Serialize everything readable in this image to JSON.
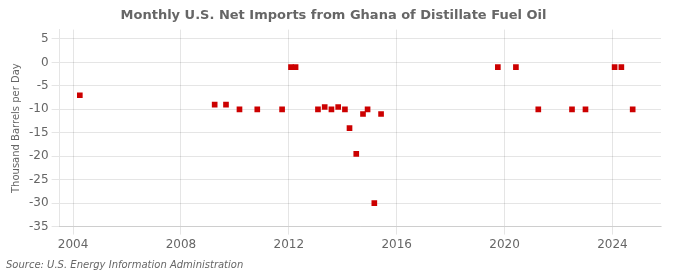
{
  "chart_data": {
    "type": "scatter",
    "title": "Monthly U.S. Net Imports from Ghana of Distillate Fuel Oil",
    "ylabel": "Thousand Barrels per Day",
    "source": "Source: U.S. Energy Information Administration",
    "x": [
      2004.25,
      2009.25,
      2009.67,
      2010.17,
      2010.83,
      2011.75,
      2012.08,
      2012.25,
      2013.08,
      2013.33,
      2013.58,
      2013.83,
      2014.08,
      2014.25,
      2014.5,
      2014.75,
      2014.92,
      2015.17,
      2015.42,
      2019.75,
      2020.42,
      2021.25,
      2022.5,
      2023.0,
      2024.08,
      2024.33,
      2024.75
    ],
    "values": [
      -7.0,
      -9.0,
      -9.0,
      -10.0,
      -10.0,
      -10.0,
      -1.0,
      -1.0,
      -10.0,
      -9.5,
      -10.0,
      -9.5,
      -10.0,
      -14.0,
      -19.5,
      -11.0,
      -10.0,
      -30.0,
      -11.0,
      -1.0,
      -1.0,
      -10.0,
      -10.0,
      -10.0,
      -1.0,
      -1.0,
      -10.0
    ],
    "color": "#cc0000",
    "marker": "square",
    "xlim": [
      2003.5,
      2025.8
    ],
    "xticks": [
      2004,
      2008,
      2012,
      2016,
      2020,
      2024
    ],
    "ylim": [
      -35,
      7
    ],
    "yticks": [
      5,
      0,
      -5,
      -10,
      -15,
      -20,
      -25,
      -30,
      -35
    ],
    "grid": true
  }
}
